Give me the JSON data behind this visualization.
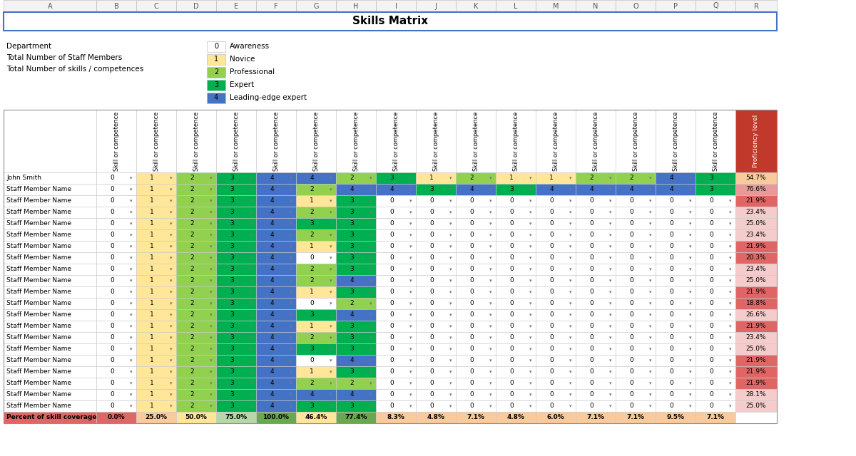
{
  "title": "Skills Matrix",
  "legend_items": [
    {
      "value": 0,
      "label": "Awareness",
      "color": "#ffffff"
    },
    {
      "value": 1,
      "label": "Novice",
      "color": "#ffe699"
    },
    {
      "value": 2,
      "label": "Professional",
      "color": "#92d050"
    },
    {
      "value": 3,
      "label": "Expert",
      "color": "#00b050"
    },
    {
      "value": 4,
      "label": "Leading-edge expert",
      "color": "#4472c4"
    }
  ],
  "info_labels": [
    "Department",
    "Total Number of Staff Members",
    "Total Number of skills / competences"
  ],
  "col_header": "Skill or competence",
  "num_skill_cols": 16,
  "proficiency_col": "Proficiency level",
  "row_names": [
    "John Smith",
    "Staff Member Name",
    "Staff Member Name",
    "Staff Member Name",
    "Staff Member Name",
    "Staff Member Name",
    "Staff Member Name",
    "Staff Member Name",
    "Staff Member Name",
    "Staff Member Name",
    "Staff Member Name",
    "Staff Member Name",
    "Staff Member Name",
    "Staff Member Name",
    "Staff Member Name",
    "Staff Member Name",
    "Staff Member Name",
    "Staff Member Name",
    "Staff Member Name",
    "Staff Member Name",
    "Staff Member Name"
  ],
  "cell_values": [
    [
      0,
      1,
      2,
      3,
      4,
      4,
      2,
      3,
      1,
      2,
      1,
      1,
      2,
      2,
      4,
      3
    ],
    [
      0,
      1,
      2,
      3,
      4,
      2,
      4,
      4,
      3,
      4,
      3,
      4,
      4,
      4,
      4,
      3
    ],
    [
      0,
      1,
      2,
      3,
      4,
      1,
      3,
      0,
      0,
      0,
      0,
      0,
      0,
      0,
      0,
      0
    ],
    [
      0,
      1,
      2,
      3,
      4,
      2,
      3,
      0,
      0,
      0,
      0,
      0,
      0,
      0,
      0,
      0
    ],
    [
      0,
      1,
      2,
      3,
      4,
      3,
      3,
      0,
      0,
      0,
      0,
      0,
      0,
      0,
      0,
      0
    ],
    [
      0,
      1,
      2,
      3,
      4,
      2,
      3,
      0,
      0,
      0,
      0,
      0,
      0,
      0,
      0,
      0
    ],
    [
      0,
      1,
      2,
      3,
      4,
      1,
      3,
      0,
      0,
      0,
      0,
      0,
      0,
      0,
      0,
      0
    ],
    [
      0,
      1,
      2,
      3,
      4,
      0,
      3,
      0,
      0,
      0,
      0,
      0,
      0,
      0,
      0,
      0
    ],
    [
      0,
      1,
      2,
      3,
      4,
      2,
      3,
      0,
      0,
      0,
      0,
      0,
      0,
      0,
      0,
      0
    ],
    [
      0,
      1,
      2,
      3,
      4,
      2,
      4,
      0,
      0,
      0,
      0,
      0,
      0,
      0,
      0,
      0
    ],
    [
      0,
      1,
      2,
      3,
      4,
      1,
      3,
      0,
      0,
      0,
      0,
      0,
      0,
      0,
      0,
      0
    ],
    [
      0,
      1,
      2,
      3,
      4,
      0,
      2,
      0,
      0,
      0,
      0,
      0,
      0,
      0,
      0,
      0
    ],
    [
      0,
      1,
      2,
      3,
      4,
      3,
      4,
      0,
      0,
      0,
      0,
      0,
      0,
      0,
      0,
      0
    ],
    [
      0,
      1,
      2,
      3,
      4,
      1,
      3,
      0,
      0,
      0,
      0,
      0,
      0,
      0,
      0,
      0
    ],
    [
      0,
      1,
      2,
      3,
      4,
      2,
      3,
      0,
      0,
      0,
      0,
      0,
      0,
      0,
      0,
      0
    ],
    [
      0,
      1,
      2,
      3,
      4,
      3,
      3,
      0,
      0,
      0,
      0,
      0,
      0,
      0,
      0,
      0
    ],
    [
      0,
      1,
      2,
      3,
      4,
      0,
      4,
      0,
      0,
      0,
      0,
      0,
      0,
      0,
      0,
      0
    ],
    [
      0,
      1,
      2,
      3,
      4,
      1,
      3,
      0,
      0,
      0,
      0,
      0,
      0,
      0,
      0,
      0
    ],
    [
      0,
      1,
      2,
      3,
      4,
      2,
      2,
      0,
      0,
      0,
      0,
      0,
      0,
      0,
      0,
      0
    ],
    [
      0,
      1,
      2,
      3,
      4,
      4,
      4,
      0,
      0,
      0,
      0,
      0,
      0,
      0,
      0,
      0
    ],
    [
      0,
      1,
      2,
      3,
      4,
      3,
      3,
      0,
      0,
      0,
      0,
      0,
      0,
      0,
      0,
      0
    ]
  ],
  "proficiency_values": [
    54.7,
    76.6,
    21.9,
    23.4,
    25.0,
    23.4,
    21.9,
    20.3,
    23.4,
    25.0,
    21.9,
    18.8,
    26.6,
    21.9,
    23.4,
    25.0,
    21.9,
    21.9,
    21.9,
    28.1,
    25.0
  ],
  "coverage_values": [
    0.0,
    25.0,
    50.0,
    75.0,
    100.0,
    46.4,
    77.4,
    8.3,
    4.8,
    7.1,
    4.8,
    6.0,
    7.1,
    7.1,
    9.5,
    7.1
  ],
  "color_map": {
    "0": "#ffffff",
    "1": "#ffe699",
    "2": "#92d050",
    "3": "#00b050",
    "4": "#4472c4"
  },
  "bg_color": "#ffffff",
  "excel_col_headers": [
    "A",
    "B",
    "C",
    "D",
    "E",
    "F",
    "G",
    "H",
    "I",
    "J",
    "K",
    "L",
    "M",
    "N",
    "O",
    "P",
    "Q",
    "R"
  ]
}
